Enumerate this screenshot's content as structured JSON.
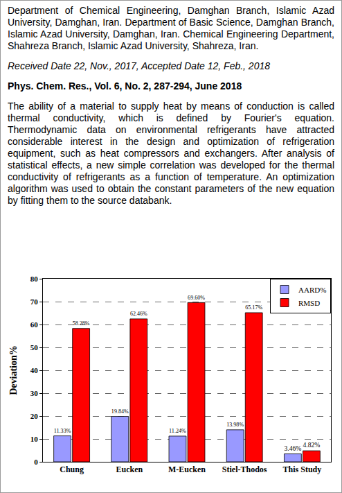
{
  "document": {
    "affiliations": "Department of Chemical Engineering, Damghan Branch, Islamic Azad University, Damghan, Iran. Department of Basic Science, Damghan Branch, Islamic Azad University, Damghan, Iran. Chemical Engineering Department, Shahreza Branch, Islamic Azad University, Shahreza, Iran.",
    "received": "Received Date 22, Nov., 2017, Accepted Date 12, Feb., 2018",
    "journal": "Phys. Chem. Res., Vol. 6, No. 2, 287-294, June 2018",
    "abstract": "The ability of a material to supply heat by means of conduction is called thermal conductivity, which is defined by Fourier's equation. Thermodynamic data on environmental refrigerants have attracted considerable interest in the design and optimization of refrigeration equipment, such as heat compressors and exchangers. After analysis of statistical effects, a new simple correlation was developed for the thermal conductivity of refrigerants as a function of temperature. An optimization algorithm was used to obtain the constant parameters of the new equation by fitting them to the source databank."
  },
  "chart_data": {
    "type": "bar",
    "y_label": "Deviation%",
    "categories": [
      "Chung",
      "Eucken",
      "M-Eucken",
      "Stiel-Thodos",
      "This Study"
    ],
    "series": [
      {
        "name": "AARD%",
        "color": "#9999ff",
        "values": [
          11.33,
          19.84,
          11.24,
          13.98,
          3.46
        ],
        "value_labels": [
          "11.33%",
          "19.84%",
          "11.24%",
          "13.98%",
          "3.46%"
        ]
      },
      {
        "name": "RMSD",
        "color": "#ff0000",
        "values": [
          58.28,
          62.46,
          69.6,
          65.17,
          4.82
        ],
        "value_labels": [
          "58.28%",
          "62.46%",
          "69.60%",
          "65.17%",
          "4.82%"
        ]
      }
    ],
    "ylim": [
      0,
      80
    ],
    "yticks": [
      0,
      10,
      20,
      30,
      40,
      50,
      60,
      70,
      80
    ],
    "grid": true,
    "legend": "upper right",
    "data_labels": true
  }
}
